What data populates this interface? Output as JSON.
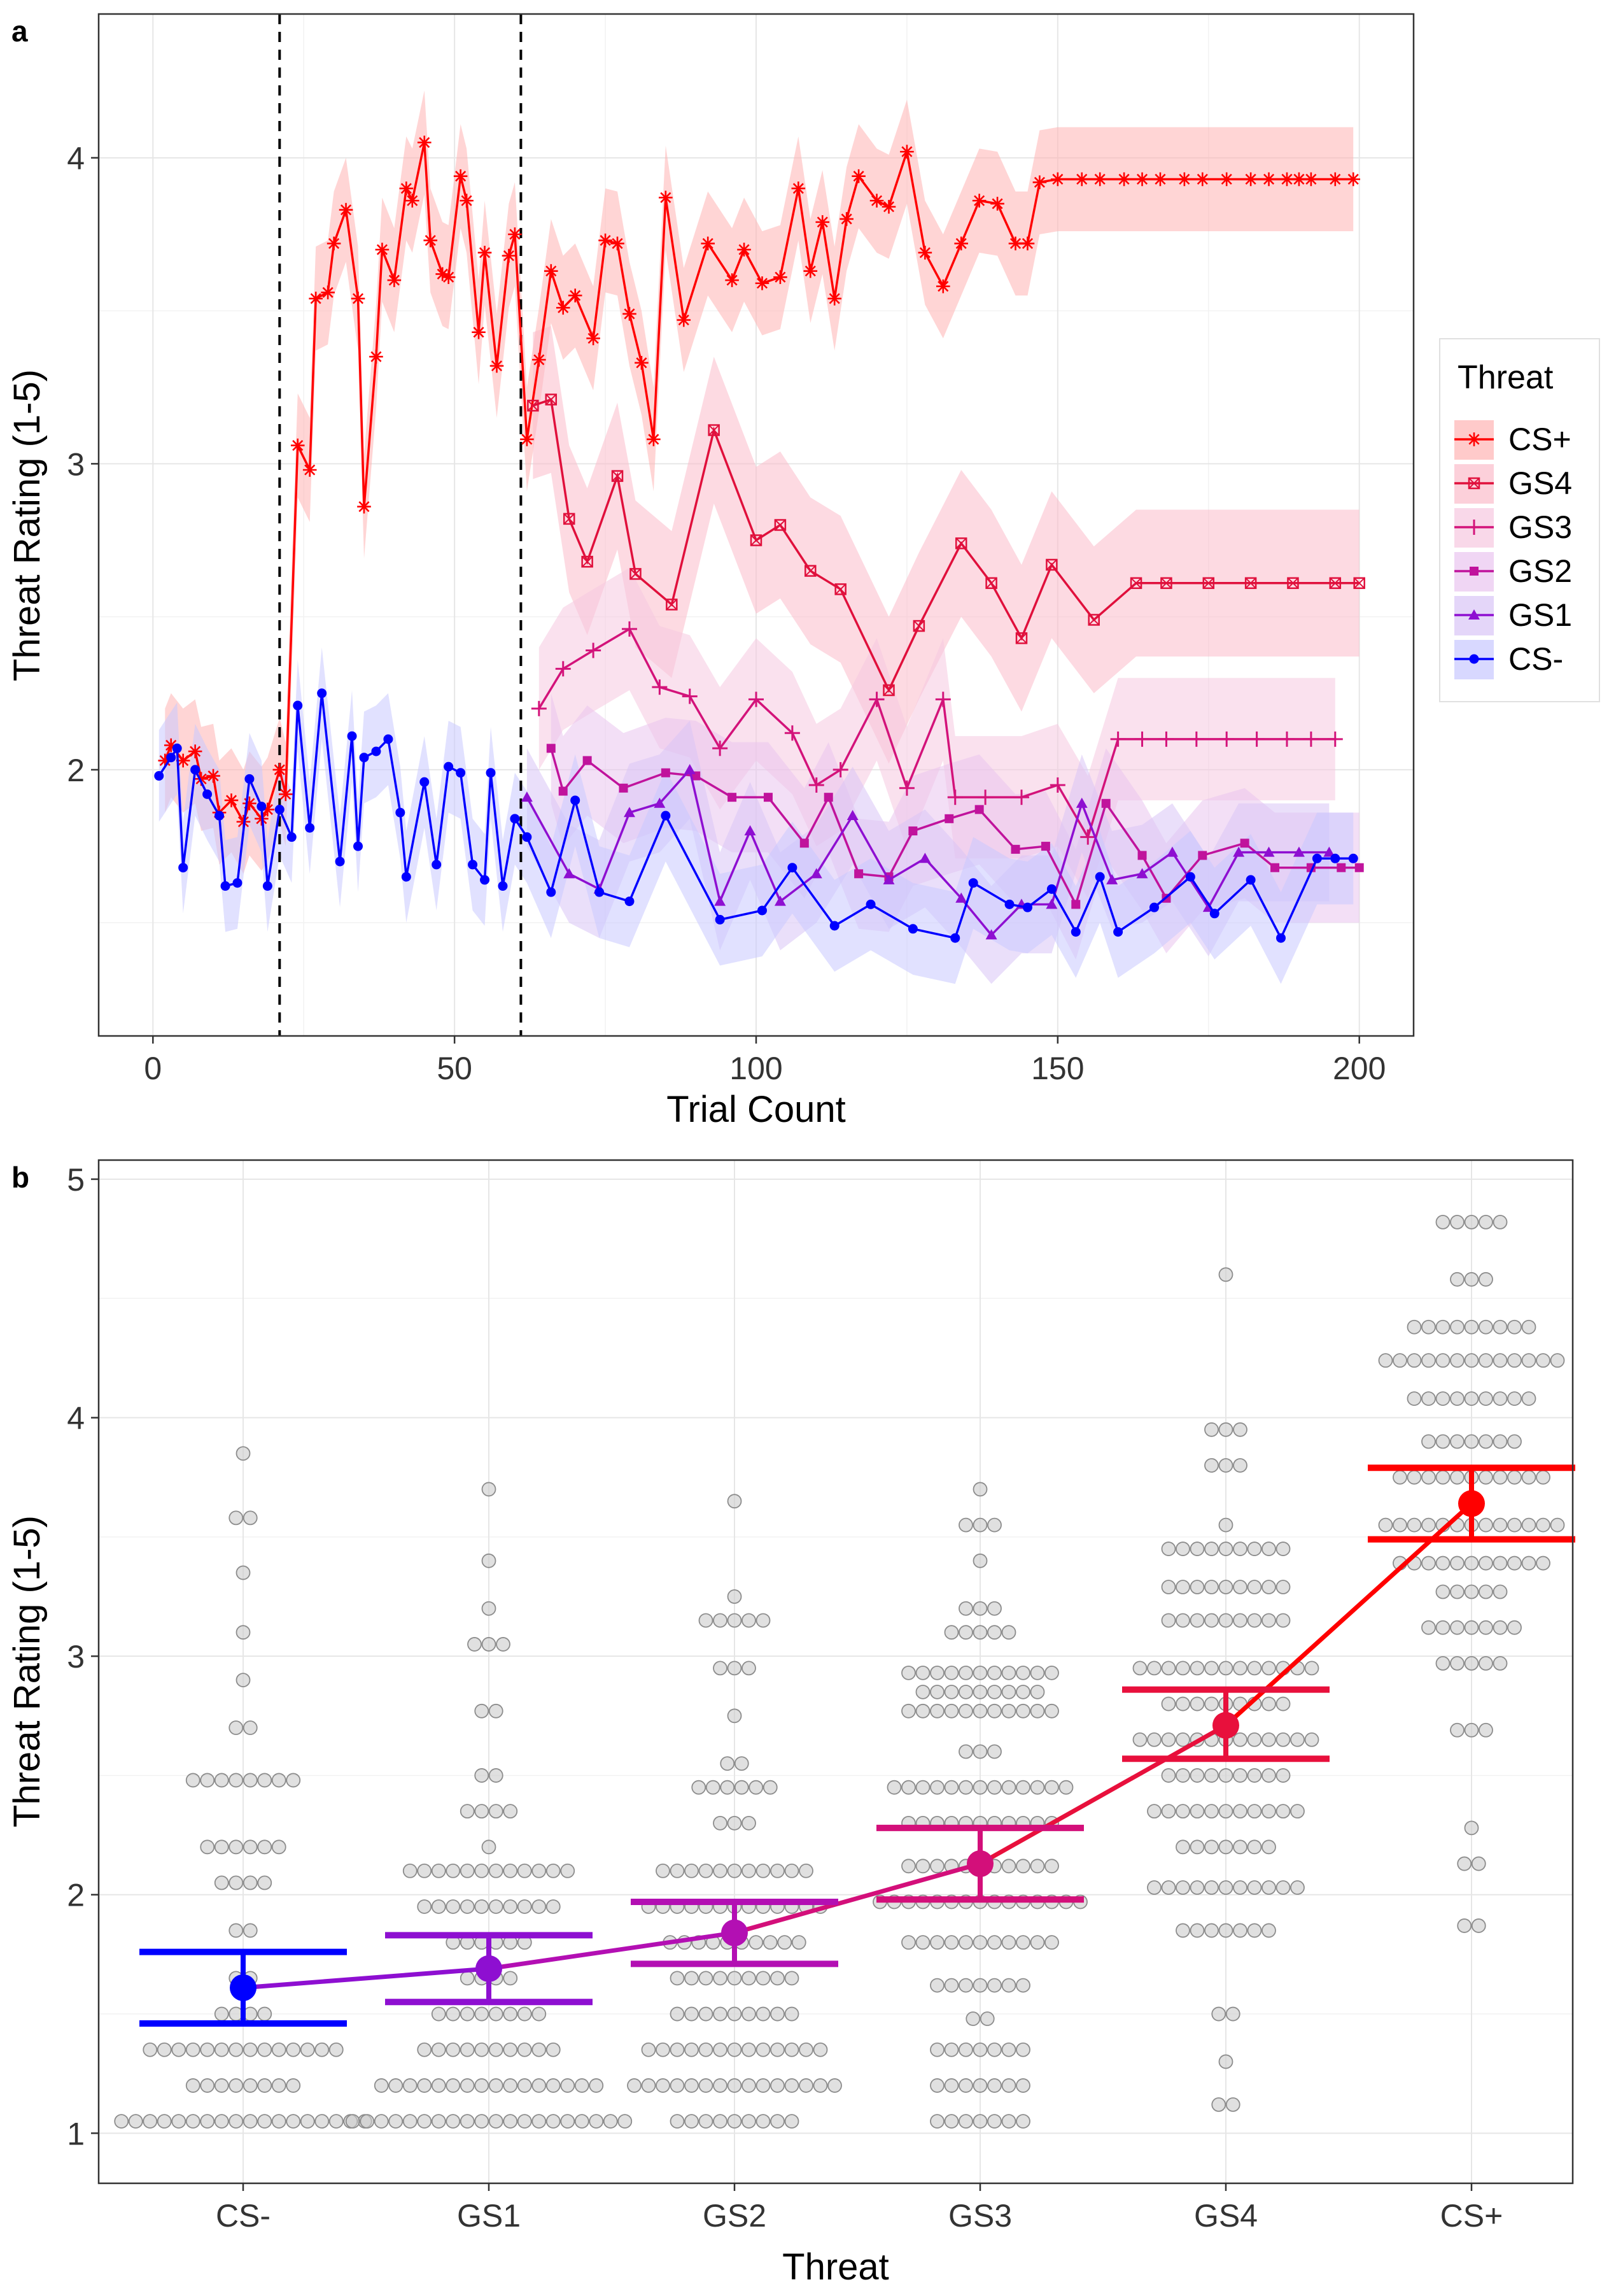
{
  "panel_a": {
    "tag": "a",
    "ylabel": "Threat Rating (1-5)",
    "xlabel": "Trial Count",
    "legend_title": "Threat",
    "chart_data": {
      "type": "line",
      "xlabel": "Trial Count",
      "ylabel": "Threat Rating (1-5)",
      "xlim": [
        -9,
        209
      ],
      "ylim": [
        1.13,
        4.47
      ],
      "x_ticks": [
        0,
        50,
        100,
        150,
        200
      ],
      "y_ticks": [
        2,
        3,
        4
      ],
      "vlines": [
        21,
        61
      ],
      "grid": true,
      "legend_position": "right",
      "series": [
        {
          "name": "CS+",
          "color": "#ff0000",
          "band": "#ffb3b3",
          "marker": "asterisk",
          "x": [
            2,
            3,
            5,
            7,
            8,
            10,
            11,
            13,
            15,
            16,
            18,
            19,
            21,
            22,
            24,
            26,
            27,
            29,
            30,
            32,
            34,
            35,
            37,
            38,
            40,
            42,
            43,
            45,
            46,
            48,
            49,
            51,
            52,
            54,
            55,
            57,
            59,
            60,
            62,
            64,
            66,
            68,
            70,
            73,
            75,
            77,
            79,
            81,
            83,
            85,
            88,
            92,
            96,
            98,
            101,
            104,
            107,
            109,
            111,
            113,
            115,
            117,
            120,
            122,
            125,
            128,
            131,
            134,
            137,
            140,
            143,
            145,
            147,
            150,
            154,
            157,
            161,
            164,
            167,
            171,
            174,
            178,
            182,
            185,
            188,
            190,
            192,
            196,
            199
          ],
          "y": [
            2.03,
            2.08,
            2.03,
            2.06,
            1.97,
            1.98,
            1.86,
            1.9,
            1.83,
            1.89,
            1.84,
            1.87,
            2.0,
            1.92,
            3.06,
            2.98,
            3.54,
            3.56,
            3.72,
            3.83,
            3.54,
            2.86,
            3.35,
            3.7,
            3.6,
            3.9,
            3.86,
            4.05,
            3.73,
            3.62,
            3.61,
            3.94,
            3.86,
            3.43,
            3.69,
            3.32,
            3.68,
            3.75,
            3.08,
            3.34,
            3.63,
            3.51,
            3.55,
            3.41,
            3.73,
            3.72,
            3.49,
            3.33,
            3.08,
            3.87,
            3.47,
            3.72,
            3.6,
            3.7,
            3.59,
            3.61,
            3.9,
            3.63,
            3.79,
            3.54,
            3.8,
            3.94,
            3.86,
            3.84,
            4.02,
            3.69,
            3.58,
            3.72,
            3.86,
            3.85,
            3.72,
            3.72,
            3.92,
            3.93,
            3.93,
            3.93,
            3.93,
            3.93,
            3.93,
            3.93,
            3.93,
            3.93,
            3.93,
            3.93,
            3.93,
            3.93,
            3.93,
            3.93,
            3.93
          ],
          "band_width": 0.17
        },
        {
          "name": "GS4",
          "color": "#e0103c",
          "band": "#fbbccb",
          "marker": "square-x",
          "x": [
            63,
            66,
            69,
            72,
            77,
            80,
            86,
            93,
            100,
            104,
            109,
            114,
            122,
            127,
            134,
            139,
            144,
            149,
            156,
            163,
            168,
            175,
            182,
            189,
            196,
            200
          ],
          "y": [
            3.19,
            3.21,
            2.82,
            2.68,
            2.96,
            2.64,
            2.54,
            3.11,
            2.75,
            2.8,
            2.65,
            2.59,
            2.26,
            2.47,
            2.74,
            2.61,
            2.43,
            2.67,
            2.49,
            2.61,
            2.61,
            2.61,
            2.61,
            2.61,
            2.61,
            2.61
          ],
          "band_width": 0.24
        },
        {
          "name": "GS3",
          "color": "#d3137a",
          "band": "#f6c8e0",
          "marker": "plus",
          "x": [
            64,
            68,
            73,
            79,
            84,
            89,
            94,
            100,
            106,
            110,
            114,
            120,
            125,
            131,
            133,
            138,
            144,
            150,
            155,
            160,
            164,
            168,
            173,
            178,
            183,
            188,
            192,
            196
          ],
          "y": [
            2.2,
            2.33,
            2.39,
            2.46,
            2.27,
            2.24,
            2.07,
            2.23,
            2.12,
            1.95,
            2.0,
            2.23,
            1.94,
            2.23,
            1.91,
            1.91,
            1.91,
            1.95,
            1.78,
            2.1,
            2.1,
            2.1,
            2.1,
            2.1,
            2.1,
            2.1,
            2.1,
            2.1
          ],
          "band_width": 0.2
        },
        {
          "name": "GS2",
          "color": "#c0139c",
          "band": "#eac5ef",
          "marker": "square",
          "x": [
            66,
            68,
            72,
            78,
            85,
            90,
            96,
            102,
            108,
            112,
            117,
            122,
            126,
            132,
            137,
            143,
            148,
            153,
            158,
            164,
            168,
            174,
            181,
            186,
            192,
            197,
            200
          ],
          "y": [
            2.07,
            1.93,
            2.03,
            1.94,
            1.99,
            1.98,
            1.91,
            1.91,
            1.76,
            1.91,
            1.66,
            1.65,
            1.8,
            1.84,
            1.87,
            1.74,
            1.75,
            1.56,
            1.89,
            1.72,
            1.58,
            1.72,
            1.76,
            1.68,
            1.68,
            1.68,
            1.68
          ],
          "band_width": 0.18
        },
        {
          "name": "GS1",
          "color": "#8e0fd1",
          "band": "#d9c4f6",
          "marker": "triangle",
          "x": [
            62,
            69,
            74,
            79,
            84,
            89,
            94,
            99,
            104,
            110,
            116,
            122,
            128,
            134,
            139,
            144,
            149,
            154,
            159,
            164,
            169,
            175,
            180,
            185,
            190,
            195
          ],
          "y": [
            1.91,
            1.66,
            1.61,
            1.86,
            1.89,
            2.0,
            1.57,
            1.8,
            1.57,
            1.66,
            1.85,
            1.64,
            1.71,
            1.58,
            1.46,
            1.56,
            1.56,
            1.89,
            1.64,
            1.66,
            1.73,
            1.55,
            1.73,
            1.73,
            1.73,
            1.73
          ],
          "band_width": 0.16
        },
        {
          "name": "CS-",
          "color": "#0000ff",
          "band": "#c8c8ff",
          "marker": "circle",
          "x": [
            1,
            3,
            4,
            5,
            7,
            9,
            11,
            12,
            14,
            16,
            18,
            19,
            21,
            23,
            24,
            26,
            28,
            31,
            33,
            34,
            35,
            37,
            39,
            41,
            42,
            45,
            47,
            49,
            51,
            53,
            55,
            56,
            58,
            60,
            62,
            66,
            70,
            74,
            79,
            85,
            94,
            101,
            106,
            113,
            119,
            126,
            133,
            136,
            142,
            145,
            149,
            153,
            157,
            160,
            166,
            172,
            176,
            182,
            187,
            193,
            196,
            199
          ],
          "y": [
            1.98,
            2.04,
            2.07,
            1.68,
            2.0,
            1.92,
            1.85,
            1.62,
            1.63,
            1.97,
            1.88,
            1.62,
            1.87,
            1.78,
            2.21,
            1.81,
            2.25,
            1.7,
            2.11,
            1.75,
            2.04,
            2.06,
            2.1,
            1.86,
            1.65,
            1.96,
            1.69,
            2.01,
            1.99,
            1.69,
            1.64,
            1.99,
            1.62,
            1.84,
            1.78,
            1.6,
            1.9,
            1.6,
            1.57,
            1.85,
            1.51,
            1.54,
            1.68,
            1.49,
            1.56,
            1.48,
            1.45,
            1.63,
            1.56,
            1.55,
            1.61,
            1.47,
            1.65,
            1.47,
            1.55,
            1.65,
            1.53,
            1.64,
            1.45,
            1.71,
            1.71,
            1.71
          ],
          "band_width": 0.15
        }
      ]
    }
  },
  "panel_b": {
    "tag": "b",
    "ylabel": "Threat Rating (1-5)",
    "xlabel": "Threat",
    "chart_data": {
      "type": "scatter",
      "categories": [
        "CS-",
        "GS1",
        "GS2",
        "GS3",
        "GS4",
        "CS+"
      ],
      "xlabel": "Threat",
      "ylabel": "Threat Rating (1-5)",
      "ylim": [
        0.79,
        5.08
      ],
      "y_ticks": [
        1,
        2,
        3,
        4,
        5
      ],
      "grid": true,
      "colors": [
        "#0000ff",
        "#8e0fd1",
        "#b30fb3",
        "#d30f7a",
        "#e8103c",
        "#ff0000"
      ],
      "means": [
        1.61,
        1.69,
        1.84,
        2.13,
        2.71,
        3.64
      ],
      "ci_low": [
        1.46,
        1.55,
        1.71,
        1.98,
        2.57,
        3.49
      ],
      "ci_high": [
        1.76,
        1.83,
        1.97,
        2.28,
        2.86,
        3.79
      ],
      "dots": [
        [
          [
            1.05,
            18
          ],
          [
            1.2,
            8
          ],
          [
            1.35,
            14
          ],
          [
            1.5,
            4
          ],
          [
            1.65,
            2
          ],
          [
            1.85,
            2
          ],
          [
            2.05,
            4
          ],
          [
            2.2,
            6
          ],
          [
            2.48,
            8
          ],
          [
            2.7,
            2
          ],
          [
            2.9,
            1
          ],
          [
            3.1,
            1
          ],
          [
            3.35,
            1
          ],
          [
            3.58,
            2
          ],
          [
            3.85,
            1
          ]
        ],
        [
          [
            1.05,
            20
          ],
          [
            1.2,
            16
          ],
          [
            1.35,
            10
          ],
          [
            1.5,
            8
          ],
          [
            1.65,
            4
          ],
          [
            1.8,
            6
          ],
          [
            1.95,
            10
          ],
          [
            2.1,
            12
          ],
          [
            2.2,
            1
          ],
          [
            2.35,
            4
          ],
          [
            2.5,
            2
          ],
          [
            2.77,
            2
          ],
          [
            3.05,
            3
          ],
          [
            3.2,
            1
          ],
          [
            3.4,
            1
          ],
          [
            3.7,
            1
          ]
        ],
        [
          [
            1.05,
            9
          ],
          [
            1.2,
            15
          ],
          [
            1.35,
            13
          ],
          [
            1.5,
            9
          ],
          [
            1.65,
            9
          ],
          [
            1.8,
            10
          ],
          [
            1.95,
            13
          ],
          [
            2.1,
            11
          ],
          [
            2.3,
            3
          ],
          [
            2.45,
            6
          ],
          [
            2.55,
            2
          ],
          [
            2.75,
            1
          ],
          [
            2.95,
            3
          ],
          [
            3.15,
            5
          ],
          [
            3.25,
            1
          ],
          [
            3.65,
            1
          ]
        ],
        [
          [
            1.05,
            7
          ],
          [
            1.2,
            7
          ],
          [
            1.35,
            7
          ],
          [
            1.48,
            2
          ],
          [
            1.62,
            7
          ],
          [
            1.8,
            11
          ],
          [
            1.97,
            15
          ],
          [
            2.12,
            11
          ],
          [
            2.3,
            11
          ],
          [
            2.45,
            13
          ],
          [
            2.6,
            3
          ],
          [
            2.77,
            11
          ],
          [
            2.85,
            9
          ],
          [
            2.93,
            11
          ],
          [
            3.1,
            5
          ],
          [
            3.2,
            3
          ],
          [
            3.4,
            1
          ],
          [
            3.55,
            3
          ],
          [
            3.7,
            1
          ]
        ],
        [
          [
            1.12,
            2
          ],
          [
            1.3,
            1
          ],
          [
            1.5,
            2
          ],
          [
            1.85,
            7
          ],
          [
            2.03,
            11
          ],
          [
            2.2,
            7
          ],
          [
            2.35,
            11
          ],
          [
            2.5,
            9
          ],
          [
            2.65,
            13
          ],
          [
            2.8,
            9
          ],
          [
            2.95,
            13
          ],
          [
            3.15,
            9
          ],
          [
            3.29,
            9
          ],
          [
            3.45,
            9
          ],
          [
            3.55,
            1
          ],
          [
            3.8,
            3
          ],
          [
            3.95,
            3
          ],
          [
            4.6,
            1
          ]
        ],
        [
          [
            1.87,
            2
          ],
          [
            2.13,
            2
          ],
          [
            2.28,
            1
          ],
          [
            2.69,
            3
          ],
          [
            2.97,
            5
          ],
          [
            3.12,
            7
          ],
          [
            3.27,
            5
          ],
          [
            3.39,
            11
          ],
          [
            3.55,
            13
          ],
          [
            3.75,
            11
          ],
          [
            3.9,
            7
          ],
          [
            4.08,
            9
          ],
          [
            4.24,
            13
          ],
          [
            4.38,
            9
          ],
          [
            4.58,
            3
          ],
          [
            4.82,
            5
          ]
        ]
      ]
    }
  }
}
